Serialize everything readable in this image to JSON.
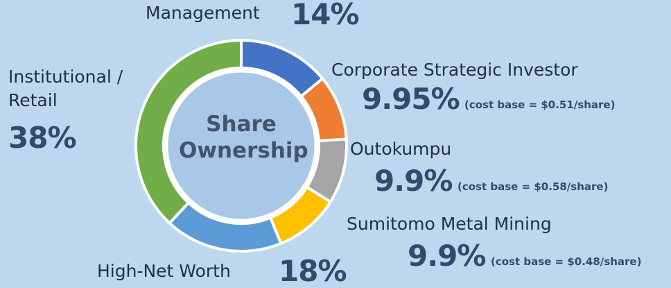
{
  "chart_data": {
    "type": "pie",
    "donut": true,
    "title": "Share Ownership",
    "categories": [
      "Management",
      "Corporate Strategic Investor",
      "Outokumpu",
      "Sumitomo Metal Mining",
      "High-Net Worth",
      "Institutional / Retail"
    ],
    "values": [
      14,
      9.95,
      9.9,
      9.9,
      18,
      38
    ],
    "value_labels": [
      "14%",
      "9.95%",
      "9.9%",
      "9.9%",
      "18%",
      "38%"
    ],
    "notes": [
      null,
      "(cost base = $0.51/share)",
      "(cost base = $0.58/share)",
      "(cost base = $0.48/share)",
      null,
      null
    ],
    "colors": [
      "#4472c4",
      "#ed7d31",
      "#a5a5a5",
      "#ffc000",
      "#5b9bd5",
      "#70ad47"
    ]
  }
}
